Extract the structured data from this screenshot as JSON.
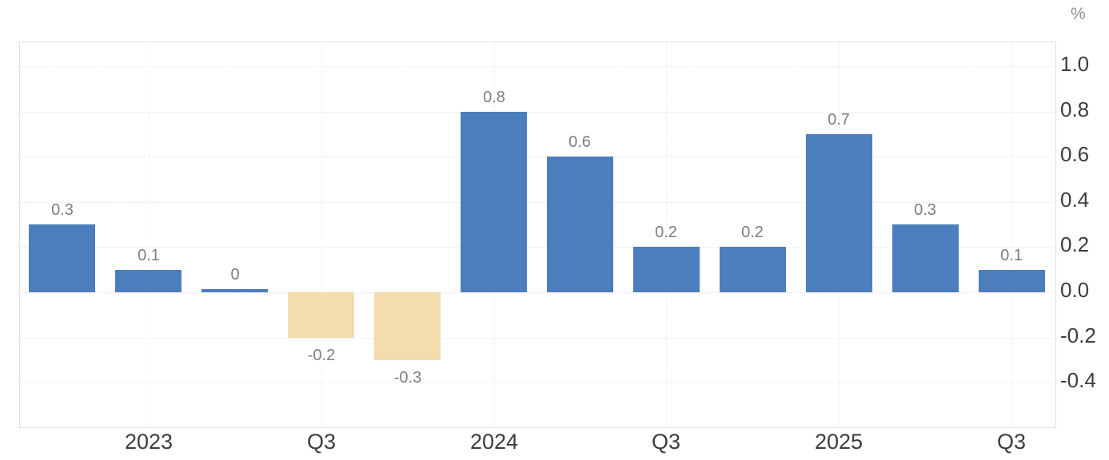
{
  "chart": {
    "unit_label": "%",
    "colors": {
      "positive_bar": "#4c7ebd",
      "negative_bar": "#f3dcae",
      "grid_line": "#e5e5e5",
      "vgrid_line": "#ececec",
      "plot_border": "#e0e0e0",
      "axis_text": "#3d3d3d",
      "bar_label_text": "#7e7e7e",
      "unit_text": "#8f8f8f",
      "background": "#ffffff"
    }
  },
  "chart_data": {
    "type": "bar",
    "title": "",
    "xlabel": "",
    "ylabel": "%",
    "legend": "none",
    "grid": "dotted horizontal lines at each y tick; faint dotted vertical lines at labeled x ticks",
    "values": [
      0.3,
      0.1,
      0,
      -0.2,
      -0.3,
      0.8,
      0.6,
      0.2,
      0.2,
      0.7,
      0.3,
      0.1
    ],
    "bar_labels": [
      "0.3",
      "0.1",
      "0",
      "-0.2",
      "-0.3",
      "0.8",
      "0.6",
      "0.2",
      "0.2",
      "0.7",
      "0.3",
      "0.1"
    ],
    "bar_color_rule": "positive bars blue, negative bars tan",
    "x_ticks": [
      {
        "label": "2023",
        "bar_index": 1
      },
      {
        "label": "Q3",
        "bar_index": 3
      },
      {
        "label": "2024",
        "bar_index": 5
      },
      {
        "label": "Q3",
        "bar_index": 7
      },
      {
        "label": "2025",
        "bar_index": 9
      },
      {
        "label": "Q3",
        "bar_index": 11
      }
    ],
    "y_ticks": [
      1.0,
      0.8,
      0.6,
      0.4,
      0.2,
      0.0,
      -0.2,
      -0.4
    ],
    "y_tick_labels": [
      "1.0",
      "0.8",
      "0.6",
      "0.4",
      "0.2",
      "0.0",
      "-0.2",
      "-0.4"
    ],
    "ylim": [
      -0.594,
      1.11
    ]
  }
}
